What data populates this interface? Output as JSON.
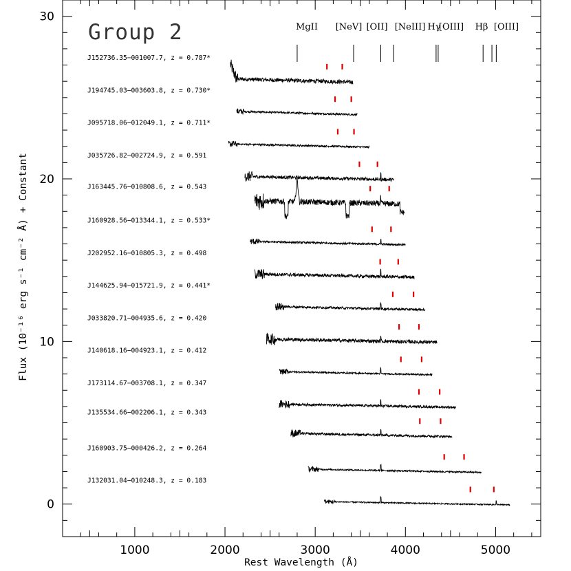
{
  "chart_data": {
    "type": "line",
    "title": "Group 2",
    "xlabel": "Rest Wavelength (Å)",
    "ylabel": "Flux (10⁻¹⁶ erg s⁻¹ cm⁻² Å) + Constant",
    "xlim": [
      200,
      5500
    ],
    "ylim": [
      -2,
      31
    ],
    "x_ticks": [
      1000,
      2000,
      3000,
      4000,
      5000
    ],
    "y_ticks": [
      0,
      10,
      20,
      30
    ],
    "emission_lines": [
      {
        "label": "MgII",
        "x": 2800
      },
      {
        "label": "[NeV]",
        "x": 3426
      },
      {
        "label": "[OII]",
        "x": 3727
      },
      {
        "label": "[NeIII]",
        "x": 3869
      },
      {
        "label": "Hγ",
        "x": 4340
      },
      {
        "label": "[OIII]",
        "x": 4363
      },
      {
        "label": "Hβ",
        "x": 4861
      },
      {
        "label": "[OIII]",
        "x": 4959
      },
      {
        "label": "[OIII]",
        "x": 5007
      }
    ],
    "line_label_texts": [
      "MgII",
      "[NeV]",
      "[OII]",
      "[NeIII]",
      "Hγ",
      "[OIII]",
      "Hβ",
      "[OIII]"
    ],
    "series": [
      {
        "name": "J152736.35−001007.7, z = 0.787*",
        "offset": 26.0,
        "x_start": 2060,
        "x_end": 3420,
        "red_marks": [
          3130,
          3300
        ],
        "noise": 0.25
      },
      {
        "name": "J194745.03−003603.8, z = 0.730*",
        "offset": 24.0,
        "x_start": 2130,
        "x_end": 3470,
        "red_marks": [
          3220,
          3400
        ],
        "noise": 0.12
      },
      {
        "name": "J095718.06−012049.1, z = 0.711*",
        "offset": 22.0,
        "x_start": 2040,
        "x_end": 3600,
        "red_marks": [
          3250,
          3430
        ],
        "noise": 0.12
      },
      {
        "name": "J035726.82−002724.9, z = 0.591",
        "offset": 20.0,
        "x_start": 2220,
        "x_end": 3870,
        "red_marks": [
          3490,
          3690
        ],
        "noise": 0.2
      },
      {
        "name": "J163445.76−010808.6, z = 0.543",
        "offset": 18.5,
        "x_start": 2330,
        "x_end": 3990,
        "red_marks": [
          3610,
          3820
        ],
        "noise": 0.35
      },
      {
        "name": "J160928.56−013344.1, z = 0.533*",
        "offset": 16.0,
        "x_start": 2280,
        "x_end": 4000,
        "red_marks": [
          3630,
          3840
        ],
        "noise": 0.12
      },
      {
        "name": "J202952.16−010805.3, z = 0.498",
        "offset": 14.0,
        "x_start": 2330,
        "x_end": 4100,
        "red_marks": [
          3720,
          3920
        ],
        "noise": 0.2
      },
      {
        "name": "J144625.94−015721.9, z = 0.441*",
        "offset": 12.0,
        "x_start": 2560,
        "x_end": 4220,
        "red_marks": [
          3860,
          4090
        ],
        "noise": 0.15
      },
      {
        "name": "J033820.71−004935.6, z = 0.420",
        "offset": 10.0,
        "x_start": 2460,
        "x_end": 4350,
        "red_marks": [
          3930,
          4150
        ],
        "noise": 0.22
      },
      {
        "name": "J140618.16−004923.1, z = 0.412",
        "offset": 8.0,
        "x_start": 2600,
        "x_end": 4300,
        "red_marks": [
          3950,
          4180
        ],
        "noise": 0.1
      },
      {
        "name": "J173114.67−003708.1, z = 0.347",
        "offset": 6.0,
        "x_start": 2600,
        "x_end": 4560,
        "red_marks": [
          4150,
          4380
        ],
        "noise": 0.15
      },
      {
        "name": "J135534.66−002206.1, z = 0.343",
        "offset": 4.2,
        "x_start": 2730,
        "x_end": 4520,
        "red_marks": [
          4160,
          4390
        ],
        "noise": 0.15
      },
      {
        "name": "J160903.75−000426.2, z = 0.264",
        "offset": 2.0,
        "x_start": 2920,
        "x_end": 4840,
        "red_marks": [
          4430,
          4650
        ],
        "noise": 0.1
      },
      {
        "name": "J132031.04−010248.3, z = 0.183",
        "offset": 0.0,
        "x_start": 3100,
        "x_end": 5160,
        "red_marks": [
          4720,
          4980
        ],
        "noise": 0.08
      }
    ]
  }
}
